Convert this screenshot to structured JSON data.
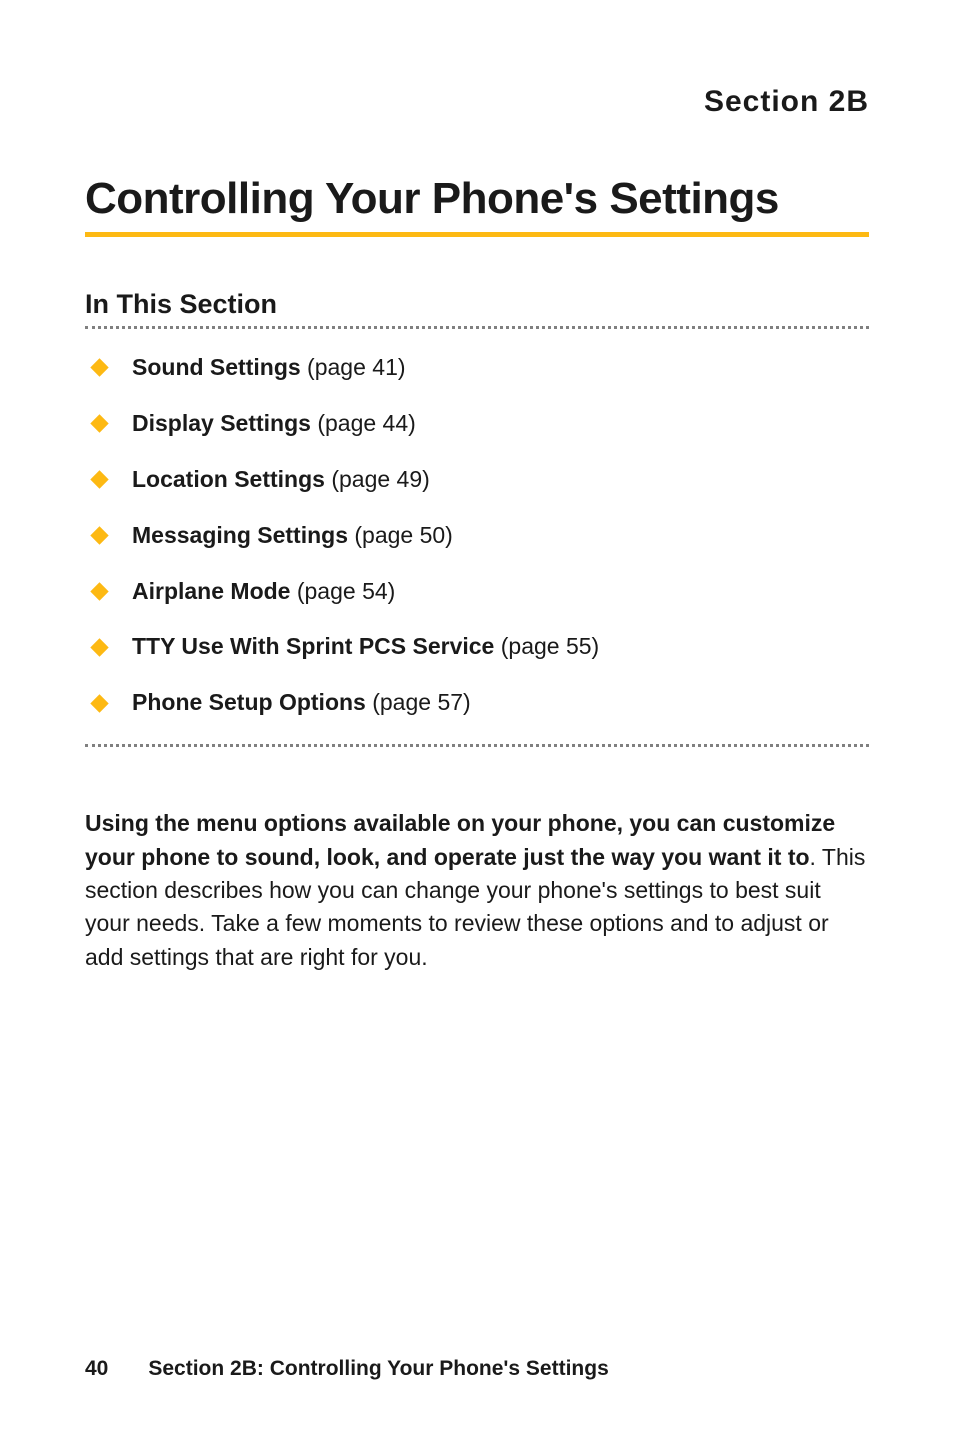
{
  "colors": {
    "accent": "#fdb913",
    "text": "#1a1a1a",
    "dotted_border": "#808080",
    "background": "#ffffff"
  },
  "header": {
    "section_label": "Section 2B"
  },
  "title": "Controlling Your Phone's Settings",
  "toc": {
    "heading": "In This Section",
    "items": [
      {
        "title": "Sound Settings",
        "page": " (page 41)"
      },
      {
        "title": "Display Settings",
        "page": " (page 44)"
      },
      {
        "title": "Location Settings",
        "page": " (page 49)"
      },
      {
        "title": "Messaging Settings",
        "page": " (page 50)"
      },
      {
        "title": "Airplane Mode",
        "page": " (page 54)"
      },
      {
        "title": "TTY Use With Sprint PCS Service",
        "page": " (page 55)"
      },
      {
        "title": "Phone Setup Options",
        "page": " (page 57)"
      }
    ]
  },
  "body": {
    "bold_part": "Using the menu options available on your phone, you can customize your phone to sound, look, and operate just the way you want it to",
    "regular_part": ". This section describes how you can change your phone's settings to best suit your needs. Take a few moments to review these options and to adjust or add settings that are right for you."
  },
  "footer": {
    "page_number": "40",
    "text": "Section 2B: Controlling Your Phone's Settings"
  }
}
